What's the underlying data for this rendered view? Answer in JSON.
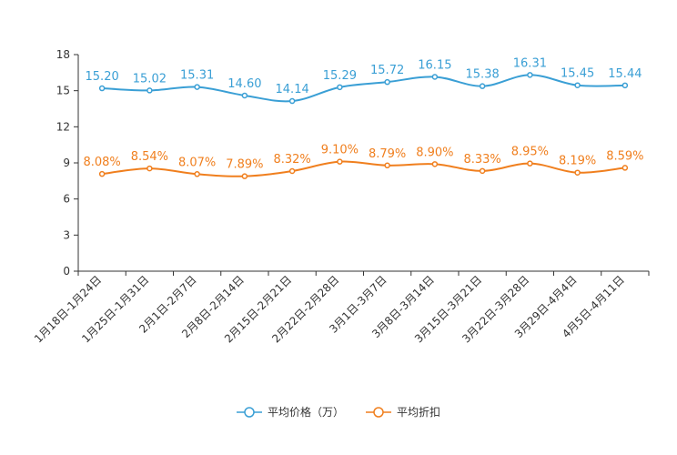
{
  "chart_data": {
    "type": "line",
    "categories": [
      "1月18日-1月24日",
      "1月25日-1月31日",
      "2月1日-2月7日",
      "2月8日-2月14日",
      "2月15日-2月21日",
      "2月22日-2月28日",
      "3月1日-3月7日",
      "3月8日-3月14日",
      "3月15日-3月21日",
      "3月22日-3月28日",
      "3月29日-4月4日",
      "4月5日-4月11日"
    ],
    "ylim": [
      0,
      18
    ],
    "yticks": [
      0,
      3,
      6,
      9,
      12,
      15,
      18
    ],
    "series": [
      {
        "name": "平均价格（万）",
        "color": "#3a9fd5",
        "values": [
          15.2,
          15.02,
          15.31,
          14.6,
          14.14,
          15.29,
          15.72,
          16.15,
          15.38,
          16.31,
          15.45,
          15.44
        ],
        "labels": [
          "15.20",
          "15.02",
          "15.31",
          "14.60",
          "14.14",
          "15.29",
          "15.72",
          "16.15",
          "15.38",
          "16.31",
          "15.45",
          "15.44"
        ]
      },
      {
        "name": "平均折扣",
        "color": "#f07f1e",
        "values": [
          8.08,
          8.54,
          8.07,
          7.89,
          8.32,
          9.1,
          8.79,
          8.9,
          8.33,
          8.95,
          8.19,
          8.59
        ],
        "labels": [
          "8.08%",
          "8.54%",
          "8.07%",
          "7.89%",
          "8.32%",
          "9.10%",
          "8.79%",
          "8.90%",
          "8.33%",
          "8.95%",
          "8.19%",
          "8.59%"
        ]
      }
    ]
  }
}
